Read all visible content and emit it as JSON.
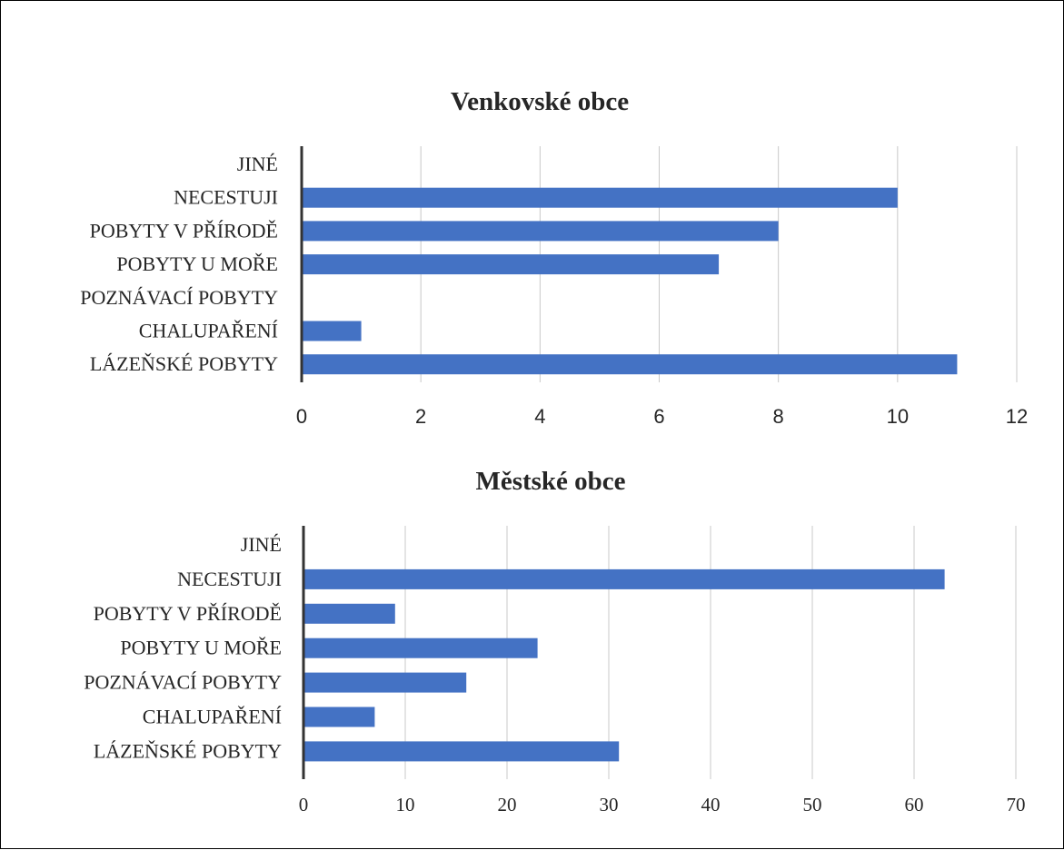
{
  "chart_data": [
    {
      "type": "bar",
      "orientation": "horizontal",
      "title": "Venkovské obce",
      "categories": [
        "JINÉ",
        "NECESTUJI",
        "POBYTY V PŘÍRODĚ",
        "POBYTY U MOŘE",
        "POZNÁVACÍ POBYTY",
        "CHALUPAŘENÍ",
        "LÁZEŇSKÉ POBYTY"
      ],
      "values": [
        0,
        10,
        8,
        7,
        0,
        1,
        11
      ],
      "xlim": [
        0,
        12
      ],
      "xticks": [
        0,
        2,
        4,
        6,
        8,
        10,
        12
      ],
      "grid": true,
      "legend": "none",
      "bar_color": "#4472C4"
    },
    {
      "type": "bar",
      "orientation": "horizontal",
      "title": "Městské obce",
      "categories": [
        "JINÉ",
        "NECESTUJI",
        "POBYTY V PŘÍRODĚ",
        "POBYTY U MOŘE",
        "POZNÁVACÍ POBYTY",
        "CHALUPAŘENÍ",
        "LÁZEŇSKÉ POBYTY"
      ],
      "values": [
        0,
        63,
        9,
        23,
        16,
        7,
        31
      ],
      "xlim": [
        0,
        70
      ],
      "xticks": [
        0,
        10,
        20,
        30,
        40,
        50,
        60,
        70
      ],
      "grid": true,
      "legend": "none",
      "bar_color": "#4472C4"
    }
  ]
}
